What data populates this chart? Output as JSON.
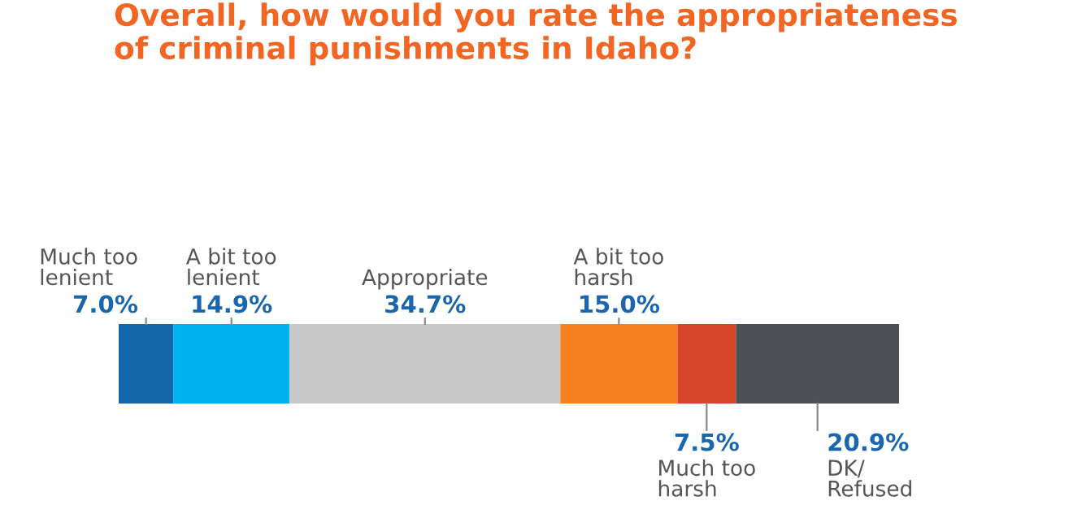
{
  "chart_data": {
    "type": "bar",
    "orientation": "horizontal",
    "stacked": true,
    "title": "Overall, how would you rate the appropriateness\nof criminal punishments in Idaho?",
    "categories": [
      null
    ],
    "series": [
      {
        "name": "Much too\nlenient",
        "color": "#1467ab",
        "values": [
          7.0
        ],
        "value_labels": [
          "7.0%"
        ]
      },
      {
        "name": "A bit too\nlenient",
        "color": "#00b2ef",
        "values": [
          14.9
        ],
        "value_labels": [
          "14.9%"
        ]
      },
      {
        "name": "Appropriate",
        "color": "#c8c8c8",
        "values": [
          34.7
        ],
        "value_labels": [
          "34.7%"
        ]
      },
      {
        "name": "A bit too\nharsh",
        "color": "#f5821f",
        "values": [
          15.0
        ],
        "value_labels": [
          "15.0%"
        ]
      },
      {
        "name": "Much too\nharsh",
        "color": "#d9452a",
        "values": [
          7.5
        ],
        "value_labels": [
          "7.5%"
        ]
      },
      {
        "name": "DK/\nRefused",
        "color": "#4d5157",
        "values": [
          20.9
        ],
        "value_labels": [
          "20.9%"
        ]
      }
    ]
  }
}
